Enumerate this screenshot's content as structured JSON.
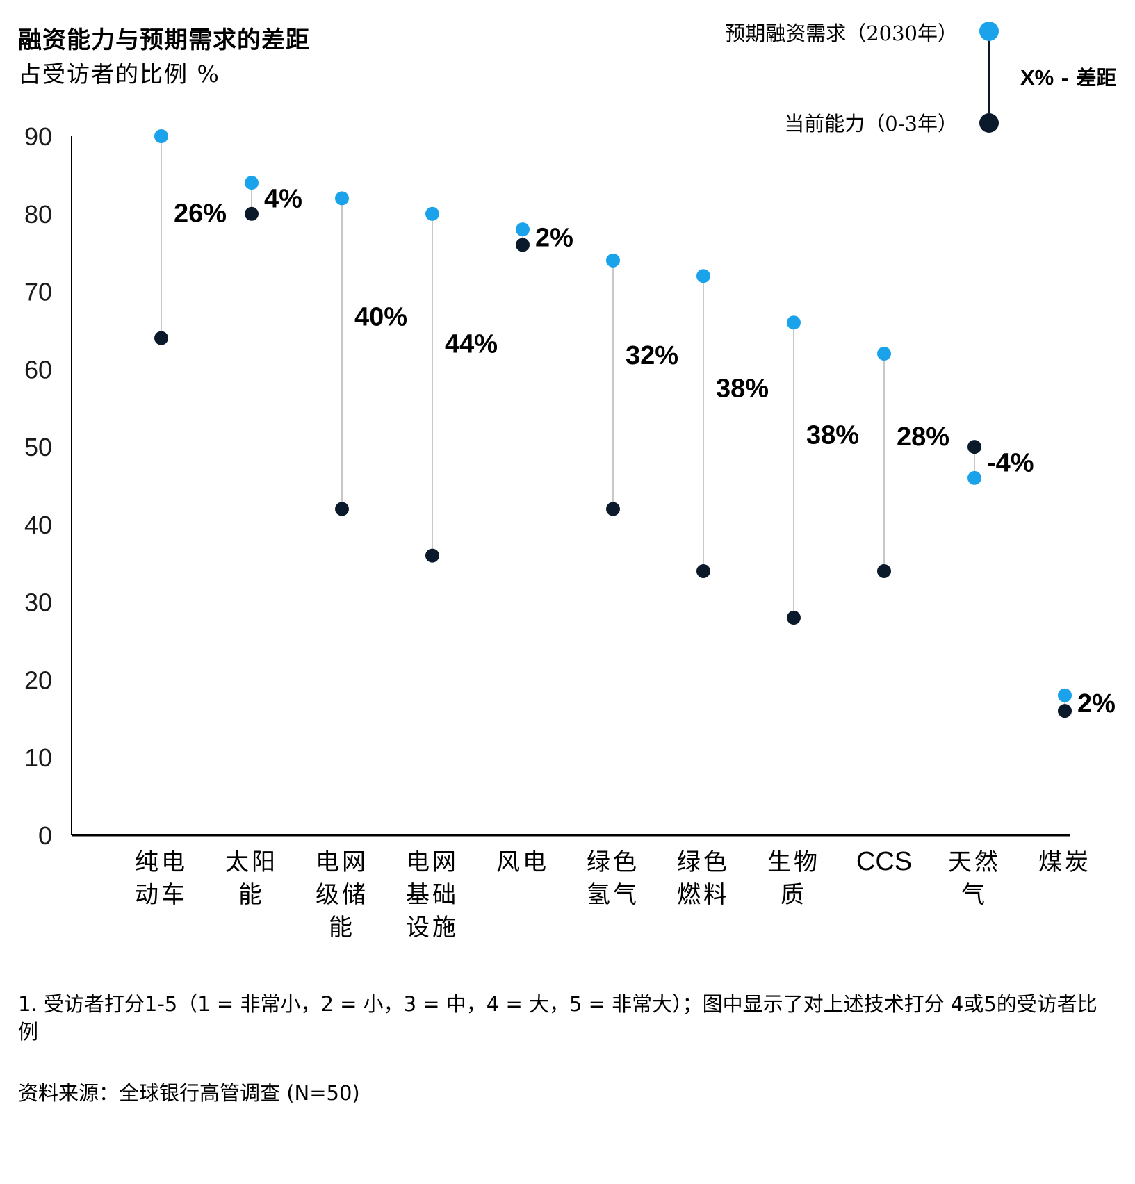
{
  "chart_data": {
    "type": "dumbbell",
    "title": "融资能力与预期需求的差距",
    "subtitle": "占受访者的比例 %",
    "ylim": [
      0,
      90
    ],
    "yticks": [
      0,
      10,
      20,
      30,
      40,
      50,
      60,
      70,
      80,
      90
    ],
    "categories": [
      {
        "label": [
          "纯电",
          "动车"
        ],
        "expected": 90,
        "current": 64,
        "gap": "26%"
      },
      {
        "label": [
          "太阳",
          "能"
        ],
        "expected": 84,
        "current": 80,
        "gap": "4%"
      },
      {
        "label": [
          "电网",
          "级储",
          "能"
        ],
        "expected": 82,
        "current": 42,
        "gap": "40%"
      },
      {
        "label": [
          "电网",
          "基础",
          "设施"
        ],
        "expected": 80,
        "current": 36,
        "gap": "44%"
      },
      {
        "label": [
          "风电"
        ],
        "expected": 78,
        "current": 76,
        "gap": "2%"
      },
      {
        "label": [
          "绿色",
          "氢气"
        ],
        "expected": 74,
        "current": 42,
        "gap": "32%"
      },
      {
        "label": [
          "绿色",
          "燃料"
        ],
        "expected": 72,
        "current": 34,
        "gap": "38%"
      },
      {
        "label": [
          "生物",
          "质"
        ],
        "expected": 66,
        "current": 28,
        "gap": "38%"
      },
      {
        "label": [
          "CCS"
        ],
        "expected": 62,
        "current": 34,
        "gap": "28%"
      },
      {
        "label": [
          "天然",
          "气"
        ],
        "expected": 46,
        "current": 50,
        "gap": "-4%"
      },
      {
        "label": [
          "煤炭"
        ],
        "expected": 18,
        "current": 16,
        "gap": "2%"
      }
    ],
    "legend": {
      "expected": "预期融资需求（2030年）",
      "current": "当前能力（0-3年）",
      "gap_prefix": "X%",
      "gap_suffix": " - 差距"
    },
    "colors": {
      "expected": "#1aa3ea",
      "current": "#0b1a2b",
      "connector": "#c8c8c8",
      "axis": "#000000"
    }
  },
  "footnote": "1. 受访者打分1-5（1 = 非常小，2 = 小，3 = 中，4 = 大，5 = 非常大）；图中显示了对上述技术打分 4或5的受访者比例",
  "source": "资料来源：全球银行高管调查 (N=50)"
}
